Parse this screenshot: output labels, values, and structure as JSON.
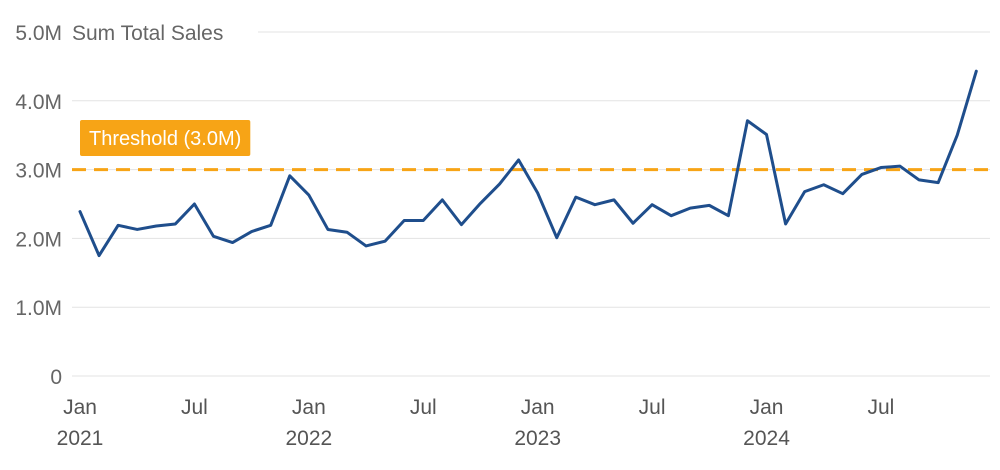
{
  "chart_data": {
    "type": "line",
    "ylabel": "Sum Total Sales",
    "ylim": [
      0,
      5000000
    ],
    "y_ticks": [
      {
        "value": 0,
        "label": "0"
      },
      {
        "value": 1000000,
        "label": "1.0M"
      },
      {
        "value": 2000000,
        "label": "2.0M"
      },
      {
        "value": 3000000,
        "label": "3.0M"
      },
      {
        "value": 4000000,
        "label": "4.0M"
      },
      {
        "value": 5000000,
        "label": "5.0M"
      }
    ],
    "x_ticks": [
      {
        "date": "2021-01",
        "label": "Jan",
        "year": "2021"
      },
      {
        "date": "2021-07",
        "label": "Jul",
        "year": ""
      },
      {
        "date": "2022-01",
        "label": "Jan",
        "year": "2022"
      },
      {
        "date": "2022-07",
        "label": "Jul",
        "year": ""
      },
      {
        "date": "2023-01",
        "label": "Jan",
        "year": "2023"
      },
      {
        "date": "2023-07",
        "label": "Jul",
        "year": ""
      },
      {
        "date": "2024-01",
        "label": "Jan",
        "year": "2024"
      },
      {
        "date": "2024-07",
        "label": "Jul",
        "year": ""
      }
    ],
    "grid": true,
    "series": [
      {
        "color": "#1f4e8c",
        "x": [
          "2021-01",
          "2021-02",
          "2021-03",
          "2021-04",
          "2021-05",
          "2021-06",
          "2021-07",
          "2021-08",
          "2021-09",
          "2021-10",
          "2021-11",
          "2021-12",
          "2022-01",
          "2022-02",
          "2022-03",
          "2022-04",
          "2022-05",
          "2022-06",
          "2022-07",
          "2022-08",
          "2022-09",
          "2022-10",
          "2022-11",
          "2022-12",
          "2023-01",
          "2023-02",
          "2023-03",
          "2023-04",
          "2023-05",
          "2023-06",
          "2023-07",
          "2023-08",
          "2023-09",
          "2023-10",
          "2023-11",
          "2023-12",
          "2024-01",
          "2024-02",
          "2024-03",
          "2024-04",
          "2024-05",
          "2024-06",
          "2024-07",
          "2024-08",
          "2024-09",
          "2024-10",
          "2024-11",
          "2024-12"
        ],
        "y": [
          2390000,
          1750000,
          2190000,
          2130000,
          2180000,
          2210000,
          2500000,
          2030000,
          1940000,
          2100000,
          2190000,
          2910000,
          2630000,
          2130000,
          2090000,
          1890000,
          1960000,
          2260000,
          2260000,
          2560000,
          2200000,
          2510000,
          2790000,
          3140000,
          2660000,
          2010000,
          2600000,
          2490000,
          2560000,
          2220000,
          2490000,
          2330000,
          2440000,
          2480000,
          2330000,
          3710000,
          3510000,
          2210000,
          2680000,
          2780000,
          2650000,
          2930000,
          3030000,
          3050000,
          2850000,
          2810000,
          3500000,
          4430000
        ]
      }
    ],
    "threshold": {
      "value": 3000000,
      "label": "Threshold (3.0M)",
      "color": "#f7a416"
    }
  }
}
